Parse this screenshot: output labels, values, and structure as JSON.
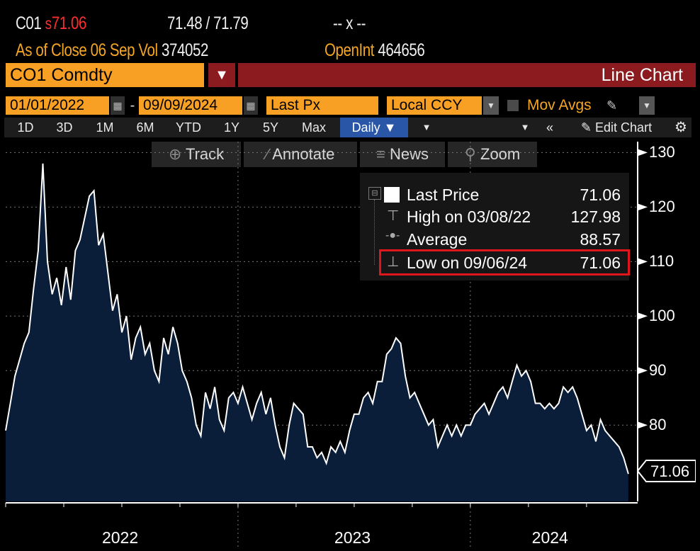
{
  "header": {
    "ticker_short": "C01",
    "price_prefix": "s",
    "last_price": "71.06",
    "bid_ask": "71.48 / 71.79",
    "change": "-- x --",
    "as_of": "As of Close",
    "date": "06 Sep",
    "vol_label": "Vol",
    "vol_value": "374052",
    "openint_label": "OpenInt",
    "openint_value": "464656"
  },
  "toolbar": {
    "security": "CO1 Comdty",
    "title": "Line Chart",
    "start_date": "01/01/2022",
    "separator": "-",
    "end_date": "09/09/2024",
    "field": "Last Px",
    "currency": "Local CCY",
    "mov_avgs": "Mov Avgs",
    "periods": [
      "1D",
      "3D",
      "1M",
      "6M",
      "YTD",
      "1Y",
      "5Y",
      "Max"
    ],
    "frequency": "Daily",
    "edit_chart": "Edit Chart",
    "track": "Track",
    "annotate": "Annotate",
    "news": "News",
    "zoom": "Zoom"
  },
  "legend": {
    "last_price_label": "Last Price",
    "last_price_value": "71.06",
    "high_label": "High on 03/08/22",
    "high_value": "127.98",
    "average_label": "Average",
    "average_value": "88.57",
    "low_label": "Low on 09/06/24",
    "low_value": "71.06"
  },
  "colors": {
    "background": "#000000",
    "area_fill": "#0a1e3a",
    "line": "#ffffff",
    "accent_orange": "#f7a024",
    "title_red": "#8b1b1f",
    "price_red": "#ff2d2d",
    "highlight_box": "#e0161d"
  },
  "chart_data": {
    "type": "area",
    "title": "Line Chart",
    "series_name": "Last Price",
    "x_range": [
      "01/01/2022",
      "09/09/2024"
    ],
    "ylim": [
      66,
      132
    ],
    "yticks": [
      80,
      90,
      100,
      110,
      120,
      130
    ],
    "xticks": [
      "2022",
      "2023",
      "2024"
    ],
    "last_value_label": "71.06",
    "x": [
      2022.0,
      2022.02,
      2022.04,
      2022.06,
      2022.08,
      2022.1,
      2022.12,
      2022.14,
      2022.16,
      2022.18,
      2022.2,
      2022.22,
      2022.24,
      2022.26,
      2022.28,
      2022.3,
      2022.32,
      2022.34,
      2022.36,
      2022.38,
      2022.4,
      2022.42,
      2022.44,
      2022.46,
      2022.48,
      2022.5,
      2022.52,
      2022.54,
      2022.56,
      2022.58,
      2022.6,
      2022.62,
      2022.64,
      2022.66,
      2022.68,
      2022.7,
      2022.72,
      2022.74,
      2022.76,
      2022.78,
      2022.8,
      2022.82,
      2022.84,
      2022.86,
      2022.88,
      2022.9,
      2022.92,
      2022.94,
      2022.96,
      2022.98,
      2023.0,
      2023.02,
      2023.04,
      2023.06,
      2023.08,
      2023.1,
      2023.12,
      2023.14,
      2023.16,
      2023.18,
      2023.2,
      2023.22,
      2023.24,
      2023.26,
      2023.28,
      2023.3,
      2023.32,
      2023.34,
      2023.36,
      2023.38,
      2023.4,
      2023.42,
      2023.44,
      2023.46,
      2023.48,
      2023.5,
      2023.52,
      2023.54,
      2023.56,
      2023.58,
      2023.6,
      2023.62,
      2023.64,
      2023.66,
      2023.68,
      2023.7,
      2023.72,
      2023.74,
      2023.76,
      2023.78,
      2023.8,
      2023.82,
      2023.84,
      2023.86,
      2023.88,
      2023.9,
      2023.92,
      2023.94,
      2023.96,
      2023.98,
      2024.0,
      2024.02,
      2024.04,
      2024.06,
      2024.08,
      2024.1,
      2024.12,
      2024.14,
      2024.16,
      2024.18,
      2024.2,
      2024.22,
      2024.24,
      2024.26,
      2024.28,
      2024.3,
      2024.32,
      2024.34,
      2024.36,
      2024.38,
      2024.4,
      2024.42,
      2024.44,
      2024.46,
      2024.48,
      2024.5,
      2024.52,
      2024.54,
      2024.56,
      2024.58,
      2024.6,
      2024.62,
      2024.64,
      2024.66,
      2024.68
    ],
    "values": [
      79.0,
      84.0,
      89.0,
      92.0,
      95.0,
      97.0,
      105.0,
      112.0,
      127.98,
      110.0,
      104.0,
      107.0,
      102.0,
      109.0,
      103.0,
      112.0,
      114.0,
      118.0,
      122.0,
      123.0,
      113.0,
      115.0,
      108.0,
      101.0,
      104.0,
      97.0,
      100.0,
      92.0,
      96.0,
      98.0,
      93.0,
      95.0,
      90.0,
      88.0,
      96.0,
      93.0,
      98.0,
      95.0,
      90.0,
      88.0,
      85.0,
      80.0,
      78.0,
      86.0,
      83.0,
      87.0,
      81.0,
      79.0,
      85.0,
      86.0,
      84.0,
      87.0,
      84.0,
      81.0,
      84.0,
      86.0,
      82.0,
      85.0,
      80.0,
      76.0,
      74.0,
      80.0,
      84.0,
      83.0,
      82.0,
      76.0,
      76.0,
      74.0,
      75.0,
      73.0,
      76.0,
      75.0,
      77.0,
      75.0,
      79.0,
      82.0,
      82.0,
      85.0,
      86.0,
      84.0,
      88.0,
      88.0,
      93.0,
      94.0,
      96.0,
      95.0,
      89.0,
      85.0,
      86.0,
      84.0,
      82.0,
      80.0,
      81.0,
      76.0,
      78.0,
      80.0,
      78.0,
      80.0,
      78.0,
      80.0,
      80.0,
      82.0,
      83.0,
      84.0,
      82.0,
      84.0,
      86.0,
      87.0,
      85.0,
      88.0,
      91.0,
      89.0,
      90.0,
      88.0,
      84.0,
      84.0,
      83.0,
      84.0,
      83.0,
      84.0,
      87.0,
      86.0,
      87.0,
      85.0,
      82.0,
      79.0,
      80.0,
      77.0,
      81.0,
      79.0,
      78.0,
      77.0,
      76.0,
      74.0,
      71.06
    ]
  }
}
